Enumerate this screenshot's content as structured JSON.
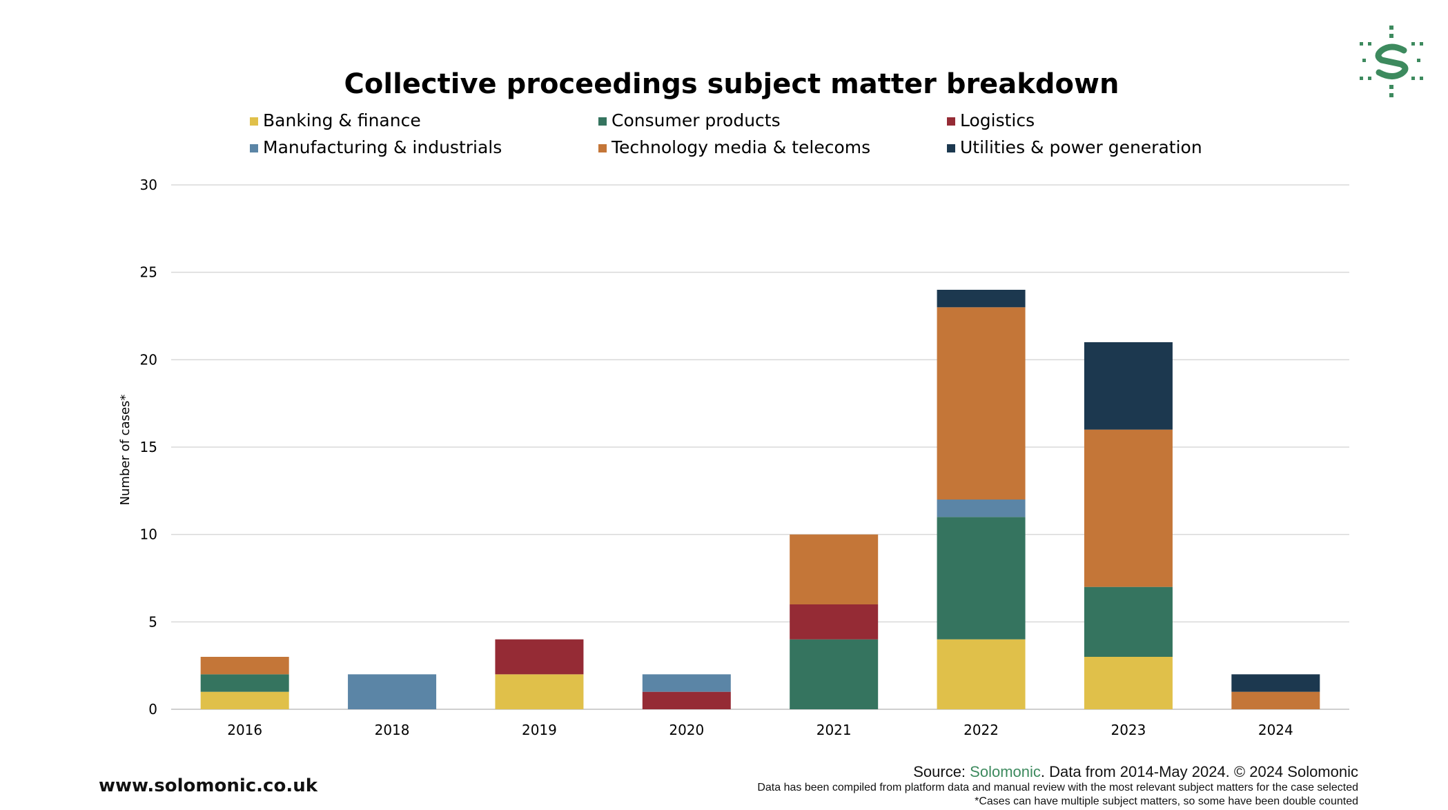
{
  "chart_data": {
    "type": "bar",
    "stacked": true,
    "title": "Collective proceedings subject matter breakdown",
    "xlabel": "",
    "ylabel": "Number of cases*",
    "ylim": [
      0,
      30
    ],
    "yticks": [
      0,
      5,
      10,
      15,
      20,
      25,
      30
    ],
    "grid": true,
    "legend_position": "top",
    "categories": [
      "2016",
      "2018",
      "2019",
      "2020",
      "2021",
      "2022",
      "2023",
      "2024"
    ],
    "series": [
      {
        "name": "Banking & finance",
        "color": "#e0c04a",
        "values": [
          1,
          0,
          2,
          0,
          0,
          4,
          3,
          0
        ]
      },
      {
        "name": "Consumer products",
        "color": "#35745f",
        "values": [
          1,
          0,
          0,
          0,
          4,
          7,
          4,
          0
        ]
      },
      {
        "name": "Logistics",
        "color": "#952b35",
        "values": [
          0,
          0,
          2,
          1,
          2,
          0,
          0,
          0
        ]
      },
      {
        "name": "Manufacturing & industrials",
        "color": "#5b85a6",
        "values": [
          0,
          2,
          0,
          1,
          0,
          1,
          0,
          0
        ]
      },
      {
        "name": "Technology media & telecoms",
        "color": "#c47638",
        "values": [
          1,
          0,
          0,
          0,
          4,
          11,
          9,
          1
        ]
      },
      {
        "name": "Utilities & power generation",
        "color": "#1c384f",
        "values": [
          0,
          0,
          0,
          0,
          0,
          1,
          5,
          1
        ]
      }
    ]
  },
  "footer": {
    "website": "www.solomonic.co.uk",
    "source_prefix": "Source: ",
    "source_link": "Solomonic",
    "source_suffix": ". Data from 2014-May 2024. © 2024 Solomonic",
    "note1": "Data has been compiled from platform data and manual review with the most relevant subject matters for the case selected",
    "note2": "*Cases can have multiple subject matters, so some have been double counted"
  },
  "colors": {
    "grid": "#d9d9d9",
    "axis": "#bfbfbf",
    "brand_green": "#3d8a5e"
  }
}
